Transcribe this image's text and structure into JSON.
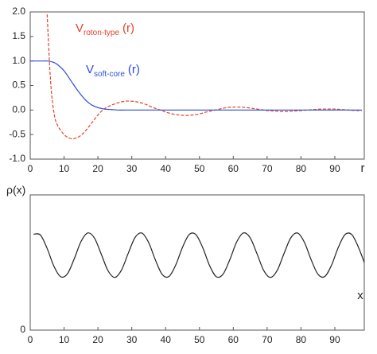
{
  "chart_data": [
    {
      "type": "line",
      "xlabel": "r",
      "x": [
        0,
        1,
        2,
        3,
        4,
        5,
        6,
        7,
        8,
        10,
        12,
        14,
        16,
        18,
        20,
        22,
        24,
        26,
        28,
        30,
        32,
        34,
        36,
        38,
        40,
        42,
        44,
        46,
        48,
        50,
        52,
        54,
        56,
        58,
        60,
        62,
        64,
        66,
        68,
        70,
        72,
        74,
        76,
        78,
        80,
        82,
        84,
        86,
        88,
        90,
        92,
        94,
        96,
        98
      ],
      "xlim": [
        0,
        98.7
      ],
      "xticks": [
        0,
        10,
        20,
        30,
        40,
        50,
        60,
        70,
        80,
        90
      ],
      "ylim": [
        -1,
        2
      ],
      "yticks": [
        {
          "value": 2,
          "label": "2.0"
        },
        {
          "value": 1.5,
          "label": "1.5"
        },
        {
          "value": 1,
          "label": "1.0"
        },
        {
          "value": 0.5,
          "label": "0.5"
        },
        {
          "value": 0,
          "label": "0.0"
        },
        {
          "value": -0.5,
          "label": "-0.5"
        },
        {
          "value": -1,
          "label": "-1.0"
        }
      ],
      "series": [
        {
          "name": "V",
          "name_sub": "roton-type",
          "name_suffix": "(r)",
          "color": "#e8402a",
          "dashed": true,
          "values": [
            null,
            null,
            null,
            null,
            null,
            1.95,
            0.6,
            -0.05,
            -0.3,
            -0.5,
            -0.58,
            -0.56,
            -0.45,
            -0.28,
            -0.1,
            0.03,
            0.1,
            0.15,
            0.18,
            0.18,
            0.16,
            0.12,
            0.06,
            0.01,
            -0.04,
            -0.08,
            -0.1,
            -0.11,
            -0.1,
            -0.08,
            -0.04,
            -0.01,
            0.02,
            0.05,
            0.06,
            0.06,
            0.05,
            0.03,
            0.01,
            -0.01,
            -0.02,
            -0.03,
            -0.03,
            -0.02,
            -0.01,
            0,
            0.01,
            0.02,
            0.02,
            0.02,
            0.01,
            0,
            -0.01,
            -0.01
          ]
        },
        {
          "name": "V",
          "name_sub": "soft-core",
          "name_suffix": "(r)",
          "color": "#2b4fd8",
          "dashed": false,
          "values": [
            1,
            1,
            1,
            1,
            1,
            1,
            0.99,
            0.97,
            0.93,
            0.8,
            0.6,
            0.4,
            0.23,
            0.11,
            0.05,
            0.02,
            0.01,
            0,
            0,
            0,
            0,
            0,
            0,
            0,
            0,
            0,
            0,
            0,
            0,
            0,
            0,
            0,
            0,
            0,
            0,
            0,
            0,
            0,
            0,
            0,
            0,
            0,
            0,
            0,
            0,
            0,
            0,
            0,
            0,
            0,
            0,
            0,
            0,
            0
          ]
        }
      ]
    },
    {
      "type": "line",
      "xlabel": "x",
      "ylabel": "ρ(x)",
      "x": [
        1,
        3,
        5,
        7,
        9,
        11,
        13,
        15,
        17,
        19,
        21,
        23,
        25,
        27,
        29,
        31,
        33,
        35,
        37,
        39,
        41,
        43,
        45,
        47,
        49,
        51,
        53,
        55,
        57,
        59,
        61,
        63,
        65,
        67,
        69,
        71,
        73,
        75,
        77,
        79,
        81,
        83,
        85,
        87,
        89,
        91,
        93,
        95,
        97,
        99
      ],
      "xlim": [
        0,
        98.7
      ],
      "xticks": [
        0,
        10,
        20,
        30,
        40,
        50,
        60,
        70,
        80,
        90
      ],
      "ylim": [
        0,
        1
      ],
      "yticks": [
        0
      ],
      "series": [
        {
          "color": "#222222",
          "dashed": false,
          "values": [
            0.709,
            0.704,
            0.604,
            0.473,
            0.395,
            0.417,
            0.527,
            0.655,
            0.719,
            0.68,
            0.561,
            0.439,
            0.39,
            0.446,
            0.571,
            0.686,
            0.718,
            0.647,
            0.518,
            0.412,
            0.397,
            0.482,
            0.613,
            0.708,
            0.705,
            0.608,
            0.477,
            0.395,
            0.415,
            0.523,
            0.652,
            0.719,
            0.682,
            0.565,
            0.441,
            0.39,
            0.443,
            0.567,
            0.683,
            0.718,
            0.65,
            0.521,
            0.414,
            0.396,
            0.479,
            0.61,
            0.706,
            0.707,
            0.611,
            0.48
          ]
        }
      ]
    }
  ]
}
